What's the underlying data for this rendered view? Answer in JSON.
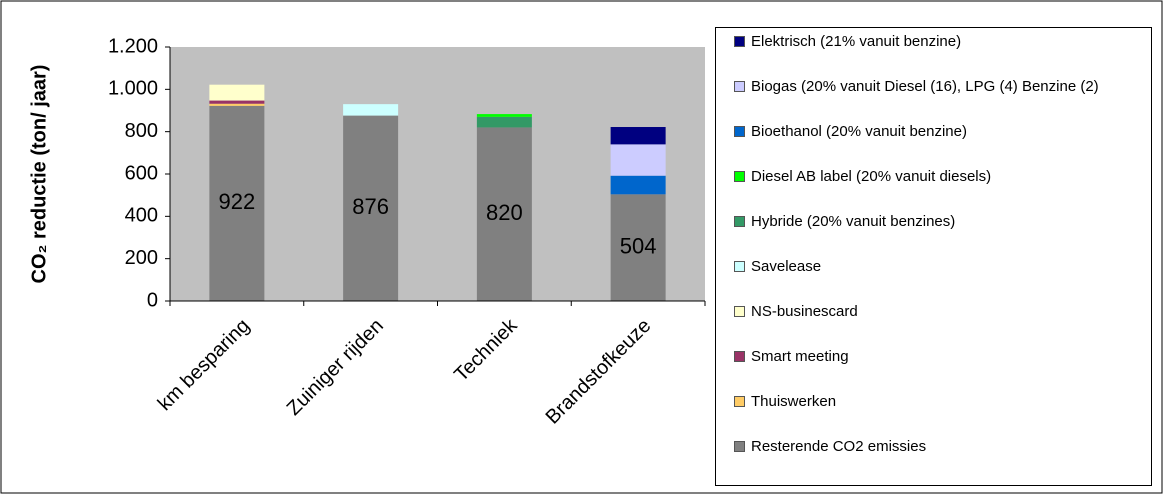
{
  "chart_data": {
    "type": "stacked_bar",
    "y_label": "CO₂ reductie (ton/ jaar)",
    "categories": [
      "km besparing",
      "Zuiniger rijden",
      "Techniek",
      "Brandstofkeuze"
    ],
    "ylim": [
      0,
      1200
    ],
    "yticks": [
      0,
      200,
      400,
      600,
      800,
      {
        "value": 1000,
        "label": "1.000"
      },
      {
        "value": 1200,
        "label": "1.200"
      }
    ],
    "grid": false,
    "legend": "right",
    "series": [
      {
        "name": "Resterende CO2 emissies",
        "color": "#808080",
        "values": [
          922,
          876,
          820,
          504
        ],
        "labels": true
      },
      {
        "name": "Thuiswerken",
        "color": "#ffcc66",
        "values": [
          10,
          0,
          0,
          0
        ]
      },
      {
        "name": "Smart meeting",
        "color": "#993366",
        "values": [
          15,
          0,
          0,
          0
        ]
      },
      {
        "name": "NS-businescard",
        "color": "#ffffcc",
        "values": [
          75,
          0,
          0,
          0
        ]
      },
      {
        "name": "Savelease",
        "color": "#ccffff",
        "values": [
          0,
          54,
          0,
          0
        ]
      },
      {
        "name": "Hybride (20% vanuit benzines)",
        "color": "#339966",
        "values": [
          0,
          0,
          50,
          0
        ]
      },
      {
        "name": "Diesel AB label (20% vanuit diesels)",
        "color": "#00ff00",
        "values": [
          0,
          0,
          13,
          0
        ]
      },
      {
        "name": "Bioethanol (20% vanuit benzine)",
        "color": "#0066cc",
        "values": [
          0,
          0,
          0,
          88
        ]
      },
      {
        "name": "Biogas (20% vanuit Diesel (16), LPG (4) Benzine (2)",
        "color": "#ccccff",
        "values": [
          0,
          0,
          0,
          148
        ]
      },
      {
        "name": "Elektrisch (21% vanuit benzine)",
        "color": "#000080",
        "values": [
          0,
          0,
          0,
          82
        ]
      }
    ]
  }
}
